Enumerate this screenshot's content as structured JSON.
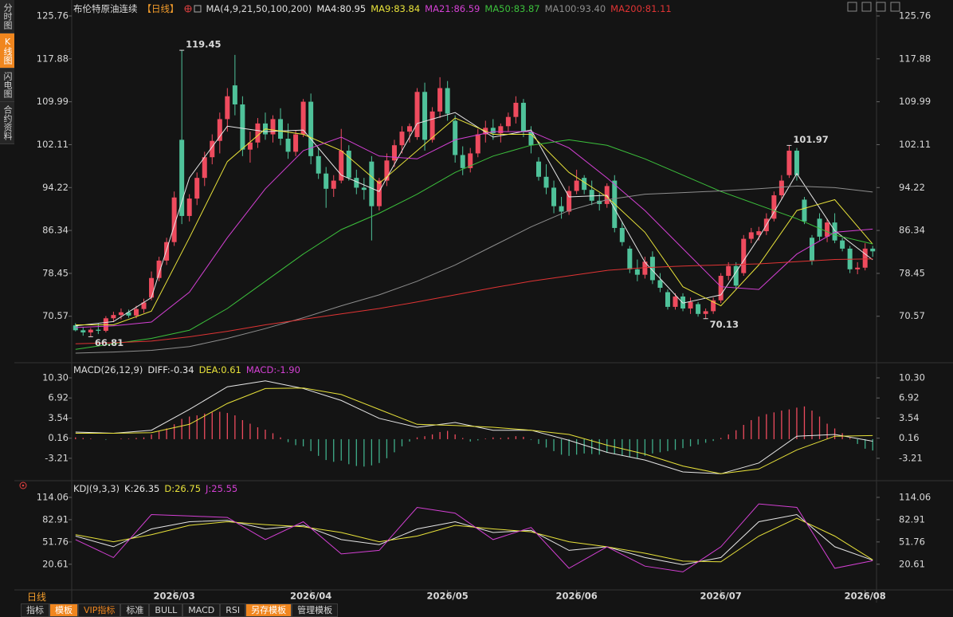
{
  "ui": {
    "side_tabs": [
      "分时图",
      "K线图",
      "闪电图",
      "合约资料"
    ],
    "timeframe": "日线",
    "toolbar": [
      "指标",
      "模板",
      "VIP指标",
      "标准",
      "BULL",
      "MACD",
      "RSI",
      "另存模板",
      "管理模板"
    ]
  },
  "chart_data": [
    {
      "type": "candlestick",
      "title": "布伦特原油连续",
      "period": "【日线】",
      "indicator": "MA(4,9,21,50,100,200)",
      "up_color": "#ee4b5e",
      "down_color": "#4fc29a",
      "xlim": [
        -0.5,
        105.5
      ],
      "xticks": [
        {
          "value": 13,
          "label": "2026/03"
        },
        {
          "value": 31,
          "label": "2026/04"
        },
        {
          "value": 49,
          "label": "2026/05"
        },
        {
          "value": 66,
          "label": "2026/06"
        },
        {
          "value": 85,
          "label": "2026/07"
        },
        {
          "value": 104,
          "label": "2026/08"
        }
      ],
      "ylim": [
        63.5,
        125.76
      ],
      "yticks": [
        125.76,
        117.88,
        109.99,
        102.11,
        94.22,
        86.34,
        78.45,
        70.57
      ],
      "ohlc": [
        [
          68.9,
          69.3,
          67.8,
          68.0
        ],
        [
          68.0,
          68.6,
          67.0,
          67.6
        ],
        [
          67.6,
          68.4,
          66.81,
          68.1
        ],
        [
          68.1,
          69.2,
          67.3,
          67.9
        ],
        [
          67.9,
          70.6,
          67.6,
          70.2
        ],
        [
          70.2,
          71.4,
          69.5,
          70.8
        ],
        [
          70.8,
          72.0,
          70.0,
          71.3
        ],
        [
          71.3,
          71.8,
          70.3,
          70.7
        ],
        [
          70.7,
          72.5,
          70.2,
          71.9
        ],
        [
          71.9,
          73.8,
          71.2,
          73.1
        ],
        [
          74.0,
          78.8,
          73.5,
          77.6
        ],
        [
          77.6,
          81.5,
          77.0,
          80.8
        ],
        [
          80.8,
          85.0,
          80.0,
          84.2
        ],
        [
          84.2,
          93.5,
          83.5,
          92.4
        ],
        [
          103.0,
          119.45,
          87.5,
          89.0
        ],
        [
          89.0,
          93.0,
          88.0,
          92.2
        ],
        [
          92.2,
          97.0,
          91.0,
          96.0
        ],
        [
          96.0,
          100.8,
          94.5,
          99.8
        ],
        [
          99.8,
          104.0,
          98.5,
          102.8
        ],
        [
          102.8,
          108.0,
          100.5,
          106.8
        ],
        [
          106.8,
          112.5,
          104.5,
          111.0
        ],
        [
          113.0,
          118.6,
          107.5,
          109.5
        ],
        [
          109.5,
          111.0,
          100.0,
          101.2
        ],
        [
          101.2,
          104.5,
          98.8,
          102.5
        ],
        [
          102.5,
          107.0,
          101.5,
          106.0
        ],
        [
          106.0,
          108.0,
          103.0,
          104.0
        ],
        [
          104.0,
          107.5,
          102.5,
          106.8
        ],
        [
          106.8,
          108.8,
          102.0,
          103.2
        ],
        [
          103.2,
          106.0,
          99.5,
          100.8
        ],
        [
          100.8,
          104.8,
          100.0,
          104.0
        ],
        [
          104.0,
          110.5,
          103.5,
          110.0
        ],
        [
          110.0,
          111.5,
          98.5,
          100.0
        ],
        [
          100.0,
          101.5,
          95.8,
          96.8
        ],
        [
          96.8,
          98.0,
          90.5,
          94.0
        ],
        [
          94.0,
          96.5,
          92.5,
          95.5
        ],
        [
          95.5,
          105.0,
          95.0,
          101.0
        ],
        [
          101.0,
          102.0,
          95.5,
          96.0
        ],
        [
          96.0,
          97.5,
          93.0,
          94.2
        ],
        [
          94.2,
          96.0,
          92.0,
          93.8
        ],
        [
          99.0,
          100.0,
          84.5,
          90.8
        ],
        [
          90.8,
          96.0,
          90.0,
          95.5
        ],
        [
          95.5,
          100.5,
          94.5,
          99.2
        ],
        [
          99.2,
          103.0,
          98.0,
          102.0
        ],
        [
          102.0,
          105.5,
          100.5,
          104.5
        ],
        [
          104.5,
          106.0,
          102.5,
          105.5
        ],
        [
          103.5,
          112.5,
          103.0,
          111.8
        ],
        [
          111.8,
          113.5,
          101.0,
          103.0
        ],
        [
          103.0,
          109.0,
          102.5,
          108.2
        ],
        [
          108.2,
          114.5,
          107.0,
          112.5
        ],
        [
          112.5,
          113.8,
          106.5,
          107.8
        ],
        [
          106.5,
          107.5,
          98.8,
          100.2
        ],
        [
          100.2,
          101.8,
          96.5,
          97.8
        ],
        [
          97.8,
          101.5,
          97.0,
          100.5
        ],
        [
          100.5,
          105.0,
          99.8,
          104.0
        ],
        [
          104.0,
          106.5,
          102.5,
          105.2
        ],
        [
          105.2,
          106.8,
          103.0,
          104.2
        ],
        [
          104.2,
          106.0,
          102.5,
          105.5
        ],
        [
          105.5,
          108.0,
          104.5,
          107.2
        ],
        [
          107.2,
          111.0,
          106.0,
          109.8
        ],
        [
          109.8,
          110.5,
          103.5,
          104.5
        ],
        [
          104.5,
          105.5,
          100.5,
          102.0
        ],
        [
          99.0,
          99.8,
          95.5,
          96.2
        ],
        [
          96.2,
          98.5,
          93.0,
          94.2
        ],
        [
          94.2,
          95.5,
          89.5,
          90.8
        ],
        [
          90.8,
          92.5,
          88.5,
          89.8
        ],
        [
          89.8,
          94.5,
          89.2,
          93.6
        ],
        [
          93.6,
          97.5,
          93.0,
          95.5
        ],
        [
          96.0,
          96.5,
          93.0,
          93.8
        ],
        [
          93.8,
          95.5,
          91.0,
          91.8
        ],
        [
          91.8,
          93.2,
          90.0,
          91.2
        ],
        [
          91.2,
          95.0,
          90.5,
          94.5
        ],
        [
          95.5,
          96.5,
          86.0,
          86.8
        ],
        [
          86.8,
          88.0,
          83.5,
          84.2
        ],
        [
          83.0,
          83.5,
          78.5,
          79.2
        ],
        [
          79.2,
          81.0,
          77.0,
          78.2
        ],
        [
          78.2,
          81.5,
          77.5,
          80.6
        ],
        [
          81.5,
          82.5,
          76.5,
          77.2
        ],
        [
          77.2,
          78.5,
          75.0,
          75.8
        ],
        [
          75.0,
          75.5,
          71.8,
          72.3
        ],
        [
          72.3,
          74.8,
          71.8,
          74.2
        ],
        [
          74.2,
          74.8,
          71.5,
          72.0
        ],
        [
          72.0,
          74.0,
          71.0,
          73.2
        ],
        [
          72.8,
          73.2,
          70.5,
          71.0
        ],
        [
          71.0,
          72.0,
          70.13,
          71.5
        ],
        [
          71.5,
          74.0,
          71.0,
          73.5
        ],
        [
          73.5,
          78.5,
          73.0,
          78.0
        ],
        [
          78.0,
          80.5,
          77.2,
          79.8
        ],
        [
          79.8,
          80.5,
          75.5,
          76.2
        ],
        [
          78.5,
          85.5,
          78.0,
          84.8
        ],
        [
          84.8,
          86.8,
          84.0,
          86.0
        ],
        [
          85.5,
          87.0,
          84.5,
          86.2
        ],
        [
          86.2,
          89.5,
          85.5,
          88.5
        ],
        [
          88.5,
          93.5,
          88.0,
          92.8
        ],
        [
          92.8,
          96.5,
          92.0,
          95.5
        ],
        [
          96.5,
          101.97,
          96.0,
          101.0
        ],
        [
          101.0,
          101.5,
          95.5,
          96.5
        ],
        [
          92.0,
          92.5,
          87.5,
          88.0
        ],
        [
          85.0,
          85.5,
          80.0,
          80.8
        ],
        [
          88.5,
          89.5,
          84.5,
          85.2
        ],
        [
          85.2,
          88.5,
          84.2,
          87.8
        ],
        [
          87.8,
          89.5,
          84.0,
          84.5
        ],
        [
          84.5,
          85.0,
          82.5,
          83.0
        ],
        [
          83.0,
          83.5,
          78.5,
          79.2
        ],
        [
          79.2,
          80.5,
          78.3,
          79.5
        ],
        [
          79.5,
          84.0,
          79.0,
          83.0
        ],
        [
          83.0,
          83.5,
          81.5,
          82.5
        ]
      ],
      "x": [
        0,
        5,
        10,
        15,
        20,
        25,
        30,
        35,
        40,
        45,
        50,
        55,
        60,
        65,
        70,
        75,
        80,
        85,
        90,
        95,
        100,
        105
      ],
      "series": [
        {
          "name": "MA4:80.95",
          "color": "#e6e6e6",
          "values": [
            68.8,
            69.6,
            74,
            96,
            105.5,
            104.5,
            104.8,
            96.5,
            93.5,
            106,
            108,
            103.5,
            104.8,
            92.5,
            92.8,
            80.5,
            73,
            74.5,
            85,
            96.8,
            86.3,
            80.95
          ]
        },
        {
          "name": "MA9:83.84",
          "color": "#e8e23a",
          "values": [
            69,
            69,
            71.5,
            85,
            99,
            105,
            104,
            101,
            95,
            101,
            107,
            104,
            104,
            97,
            92.5,
            86,
            76,
            72.5,
            80,
            90,
            92,
            83.84
          ]
        },
        {
          "name": "MA21:86.59",
          "color": "#d440d4",
          "values": [
            68.5,
            68.8,
            69.5,
            75,
            85,
            94,
            101,
            103.5,
            100,
            99.5,
            103,
            104.5,
            104.5,
            101.5,
            96,
            90,
            83,
            76,
            75.5,
            82,
            86,
            86.59
          ]
        },
        {
          "name": "MA50:83.87",
          "color": "#3cc13c",
          "values": [
            64.5,
            65.5,
            66.5,
            68,
            72,
            77,
            82,
            86.5,
            89.5,
            93,
            97,
            100,
            102,
            103,
            102,
            99.5,
            96.5,
            93.5,
            91,
            88.5,
            85.5,
            83.87
          ]
        },
        {
          "name": "MA100:93.40",
          "color": "#8e8e8e",
          "values": [
            63.8,
            64,
            64.3,
            65,
            66.5,
            68.3,
            70.3,
            72.5,
            74.5,
            77,
            80,
            83.5,
            87,
            90,
            92,
            93,
            93.3,
            93.6,
            94,
            94.5,
            94.2,
            93.4
          ]
        },
        {
          "name": "MA200:81.11",
          "color": "#e03434",
          "values": [
            65.5,
            65.7,
            66,
            66.8,
            67.8,
            69,
            70,
            71,
            72,
            73.2,
            74.5,
            75.8,
            77,
            78,
            79,
            79.5,
            79.8,
            80,
            80.2,
            80.6,
            81,
            81.11
          ]
        }
      ],
      "annotations": [
        {
          "value": 119.45,
          "index": 14,
          "color": "#ee4b5e",
          "position": "above"
        },
        {
          "value": 101.97,
          "index": 94,
          "color": "#ee4b5e",
          "position": "above"
        },
        {
          "value": 70.13,
          "index": 83,
          "color": "#4fc29a",
          "position": "below"
        },
        {
          "value": 66.81,
          "index": 2,
          "color": "#4fc29a",
          "position": "below"
        }
      ]
    },
    {
      "type": "macd",
      "title": "MACD(26,12,9)",
      "xlim": [
        -0.5,
        105.5
      ],
      "ylim": [
        -6.3,
        11.1
      ],
      "yticks": [
        {
          "value": 10.3,
          "label": "10.30"
        },
        6.92,
        3.54,
        0.16,
        -3.21
      ],
      "x": [
        0,
        5,
        10,
        15,
        20,
        25,
        30,
        35,
        40,
        45,
        50,
        55,
        60,
        65,
        70,
        75,
        80,
        85,
        90,
        95,
        100,
        105
      ],
      "series": [
        {
          "name": "DIFF:-0.34",
          "color": "#e6e6e6",
          "values": [
            1.2,
            1.0,
            1.5,
            5.0,
            8.8,
            9.8,
            8.5,
            6.5,
            3.5,
            2.0,
            2.8,
            1.5,
            1.5,
            -0.2,
            -2.2,
            -3.5,
            -5.5,
            -5.8,
            -4.0,
            0.5,
            0.8,
            -0.34
          ]
        },
        {
          "name": "DEA:0.61",
          "color": "#e8e23a",
          "values": [
            1.0,
            1.0,
            1.1,
            2.5,
            6.0,
            8.5,
            8.6,
            7.5,
            5.0,
            2.5,
            2.3,
            2.0,
            1.5,
            0.8,
            -1.0,
            -2.5,
            -4.5,
            -5.8,
            -5.0,
            -1.8,
            0.5,
            0.61
          ]
        }
      ],
      "histogram": {
        "name": "MACD:-1.90",
        "color": "#d440d4",
        "up_color": "#ee4b5e",
        "down_color": "#3fae8a",
        "values": [
          0.3,
          0.2,
          0.1,
          0.0,
          -0.1,
          0.0,
          0.1,
          0.1,
          0.2,
          0.3,
          0.8,
          1.3,
          1.8,
          2.5,
          3.4,
          3.8,
          4.0,
          4.3,
          4.5,
          4.6,
          4.4,
          4.0,
          3.2,
          2.6,
          2.0,
          1.6,
          1.0,
          0.3,
          -0.5,
          -1.0,
          -1.2,
          -2.0,
          -2.8,
          -3.5,
          -3.8,
          -3.6,
          -4.2,
          -4.5,
          -4.6,
          -4.4,
          -4.0,
          -3.2,
          -2.2,
          -1.2,
          -0.4,
          0.3,
          0.5,
          0.8,
          1.2,
          1.4,
          0.8,
          0.2,
          -0.4,
          -0.2,
          0.1,
          0.3,
          0.2,
          0.3,
          0.5,
          0.4,
          -0.1,
          -0.8,
          -1.4,
          -2.0,
          -2.6,
          -2.8,
          -2.6,
          -2.4,
          -2.5,
          -2.6,
          -2.3,
          -2.5,
          -2.8,
          -3.0,
          -3.2,
          -2.8,
          -2.4,
          -2.2,
          -2.0,
          -1.8,
          -1.5,
          -1.2,
          -0.9,
          -0.6,
          -0.3,
          0.2,
          0.8,
          1.5,
          2.4,
          3.2,
          3.8,
          4.2,
          4.5,
          4.8,
          5.0,
          5.3,
          5.5,
          4.8,
          3.8,
          2.6,
          1.8,
          1.0,
          0.2,
          -0.8,
          -1.6,
          -1.9
        ]
      }
    },
    {
      "type": "line",
      "title": "KDJ(9,3,3)",
      "xlim": [
        -0.5,
        105.5
      ],
      "ylim": [
        -13,
        124
      ],
      "yticks": [
        114.06,
        82.91,
        51.76,
        20.61
      ],
      "x": [
        0,
        5,
        10,
        15,
        20,
        25,
        30,
        35,
        40,
        45,
        50,
        55,
        60,
        65,
        70,
        75,
        80,
        85,
        90,
        95,
        100,
        105
      ],
      "series": [
        {
          "name": "K:26.35",
          "color": "#e6e6e6",
          "values": [
            60,
            45,
            70,
            80,
            82,
            70,
            75,
            55,
            48,
            70,
            80,
            65,
            68,
            40,
            45,
            30,
            20,
            30,
            80,
            90,
            45,
            26.35
          ]
        },
        {
          "name": "D:26.75",
          "color": "#e8e23a",
          "values": [
            62,
            52,
            62,
            75,
            80,
            76,
            73,
            65,
            52,
            60,
            75,
            70,
            66,
            52,
            45,
            36,
            25,
            24,
            60,
            85,
            60,
            26.75
          ]
        },
        {
          "name": "J:25.55",
          "color": "#d440d4",
          "values": [
            55,
            30,
            90,
            88,
            86,
            55,
            80,
            35,
            40,
            100,
            92,
            55,
            72,
            15,
            45,
            18,
            10,
            45,
            105,
            100,
            15,
            25.55
          ]
        }
      ]
    }
  ]
}
